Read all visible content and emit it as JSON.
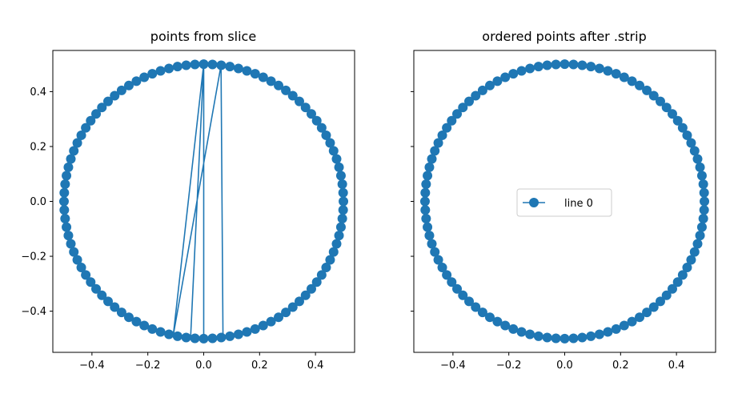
{
  "chart_data": [
    {
      "type": "line",
      "title": "points from slice",
      "xlabel": "",
      "ylabel": "",
      "xlim": [
        -0.54,
        0.54
      ],
      "ylim": [
        -0.55,
        0.55
      ],
      "xticks": [
        -0.4,
        -0.2,
        0.0,
        0.2,
        0.4
      ],
      "xtick_labels": [
        "−0.4",
        "−0.2",
        "0.0",
        "0.2",
        "0.4"
      ],
      "yticks": [
        -0.4,
        -0.2,
        0.0,
        0.2,
        0.4
      ],
      "ytick_labels": [
        "−0.4",
        "−0.2",
        "0.0",
        "0.2",
        "0.4"
      ],
      "color": "#1f77b4",
      "marker": "circle",
      "legend": null,
      "series": [
        {
          "circle_radius": 0.5,
          "n_points": 100,
          "order": "slice",
          "note_points": [
            [
              0.0,
              0.5
            ],
            [
              -0.047,
              -0.498
            ],
            [
              0.0,
              -0.5
            ],
            [
              0.0,
              0.5
            ],
            [
              -0.109,
              -0.488
            ],
            [
              0.062,
              0.496
            ],
            [
              0.069,
              -0.495
            ]
          ]
        }
      ]
    },
    {
      "type": "line",
      "title": "ordered points after .strip",
      "xlabel": "",
      "ylabel": "",
      "xlim": [
        -0.54,
        0.54
      ],
      "ylim": [
        -0.55,
        0.55
      ],
      "xticks": [
        -0.4,
        -0.2,
        0.0,
        0.2,
        0.4
      ],
      "xtick_labels": [
        "−0.4",
        "−0.2",
        "0.0",
        "0.2",
        "0.4"
      ],
      "yticks": [
        -0.4,
        -0.2,
        0.0,
        0.2,
        0.4
      ],
      "ytick_labels": [],
      "color": "#1f77b4",
      "marker": "circle",
      "legend": "center",
      "series": [
        {
          "name": "line 0",
          "circle_radius": 0.5,
          "n_points": 100,
          "order": "angular"
        }
      ]
    }
  ]
}
